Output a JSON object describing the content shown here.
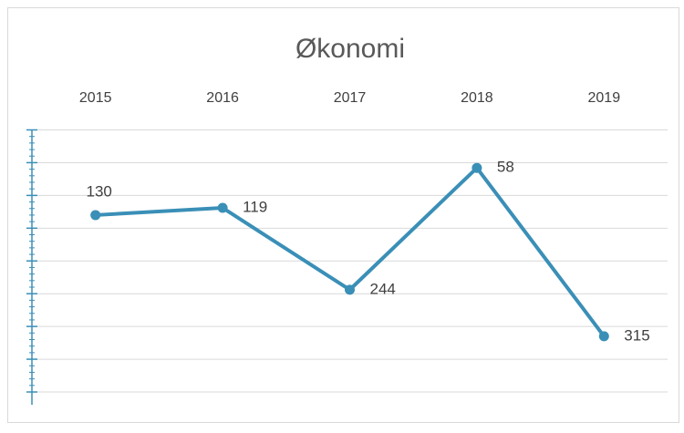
{
  "chart_data": {
    "type": "line",
    "title": "Økonomi",
    "categories": [
      "2015",
      "2016",
      "2017",
      "2018",
      "2019"
    ],
    "series": [
      {
        "name": "Økonomi",
        "color": "#3a8fb7",
        "values": [
          130,
          119,
          244,
          58,
          315
        ]
      }
    ],
    "ylim": [
      0,
      400
    ],
    "y_reversed": true,
    "yticks": [
      0,
      50,
      100,
      150,
      200,
      250,
      300,
      350,
      400
    ],
    "grid": true,
    "axis_color": "#3a8fb7"
  }
}
